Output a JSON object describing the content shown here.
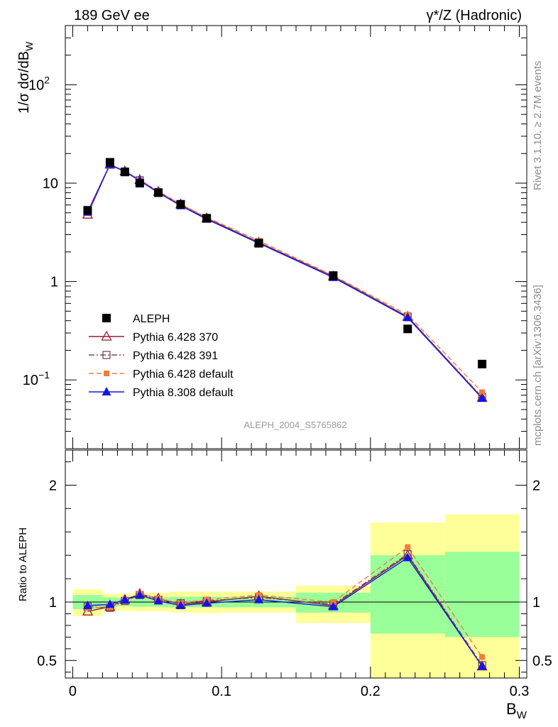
{
  "header": {
    "left_title": "189 GeV ee",
    "right_title": "γ*/Z (Hadronic)",
    "side_rivet": "Rivet 3.1.10, ≥ 2.7M events",
    "side_mcplots": "mcplots.cern.ch [arXiv:1306.3436]",
    "analysis_id": "ALEPH_2004_S5765862"
  },
  "chart_data": [
    {
      "type": "line",
      "panel": "main",
      "ylabel_main": "1/σ  dσ/dB",
      "ylabel_sub": "W",
      "yscale": "log",
      "ylim": [
        0.02,
        400
      ],
      "xlim": [
        -0.005,
        0.305
      ],
      "ytick_labels": [
        {
          "v": 100,
          "base": "10",
          "exp": "2"
        },
        {
          "v": 10,
          "base": "10",
          "exp": ""
        },
        {
          "v": 1,
          "base": "1",
          "exp": ""
        },
        {
          "v": 0.1,
          "base": "10",
          "exp": "−1"
        }
      ],
      "legend_position": "lower-left",
      "series": [
        {
          "name": "ALEPH",
          "color": "#000000",
          "marker": "square-filled",
          "x": [
            0.01,
            0.025,
            0.035,
            0.045,
            0.0575,
            0.0725,
            0.09,
            0.125,
            0.175,
            0.225,
            0.275
          ],
          "values": [
            5.3,
            16.3,
            13.0,
            10.0,
            8.0,
            6.1,
            4.4,
            2.45,
            1.15,
            0.33,
            0.145
          ]
        },
        {
          "name": "Pythia 6.428 370",
          "color": "#9b1b30",
          "marker": "triangle-open",
          "dash": "",
          "x": [
            0.01,
            0.025,
            0.035,
            0.045,
            0.0575,
            0.0725,
            0.09,
            0.125,
            0.175,
            0.225,
            0.275
          ],
          "values": [
            4.8,
            15.5,
            13.2,
            10.8,
            8.2,
            6.1,
            4.4,
            2.5,
            1.13,
            0.44,
            0.066
          ]
        },
        {
          "name": "Pythia 6.428 391",
          "color": "#7a4a5a",
          "marker": "square-open",
          "dash": "8 3 2 3",
          "x": [
            0.01,
            0.025,
            0.035,
            0.045,
            0.0575,
            0.0725,
            0.09,
            0.125,
            0.175,
            0.225,
            0.275
          ],
          "values": [
            5.1,
            15.4,
            13.1,
            10.7,
            8.1,
            6.0,
            4.4,
            2.5,
            1.12,
            0.44,
            0.067
          ]
        },
        {
          "name": "Pythia 6.428 default",
          "color": "#f07c3a",
          "marker": "square-filled-small",
          "dash": "7 4",
          "x": [
            0.01,
            0.025,
            0.035,
            0.045,
            0.0575,
            0.0725,
            0.09,
            0.125,
            0.175,
            0.225,
            0.275
          ],
          "values": [
            5.0,
            15.6,
            13.2,
            10.7,
            8.2,
            6.1,
            4.5,
            2.6,
            1.15,
            0.46,
            0.075
          ]
        },
        {
          "name": "Pythia 8.308 default",
          "color": "#1414e6",
          "marker": "triangle-filled",
          "dash": "",
          "x": [
            0.01,
            0.025,
            0.035,
            0.045,
            0.0575,
            0.0725,
            0.09,
            0.125,
            0.175,
            0.225,
            0.275
          ],
          "values": [
            5.1,
            15.5,
            13.1,
            10.6,
            8.0,
            5.9,
            4.3,
            2.45,
            1.1,
            0.43,
            0.065
          ]
        }
      ]
    },
    {
      "type": "line",
      "panel": "ratio",
      "ylabel": "Ratio to ALEPH",
      "xlabel_main": "B",
      "xlabel_sub": "W",
      "ylim": [
        0.35,
        2.3
      ],
      "xlim": [
        -0.005,
        0.305
      ],
      "xtick_labels": [
        {
          "v": 0,
          "label": "0"
        },
        {
          "v": 0.1,
          "label": "0.1"
        },
        {
          "v": 0.2,
          "label": "0.2"
        },
        {
          "v": 0.3,
          "label": "0.3"
        }
      ],
      "ytick_labels": [
        {
          "v": 2,
          "label": "2"
        },
        {
          "v": 1,
          "label": "1"
        },
        {
          "v": 0.5,
          "label": "0.5"
        }
      ],
      "bands": [
        {
          "x0": 0.0,
          "x1": 0.02,
          "yellow": [
            0.88,
            1.11
          ],
          "green": [
            0.94,
            1.06
          ]
        },
        {
          "x0": 0.02,
          "x1": 0.03,
          "yellow": [
            0.92,
            1.07
          ],
          "green": [
            0.96,
            1.04
          ]
        },
        {
          "x0": 0.03,
          "x1": 0.04,
          "yellow": [
            0.925,
            1.075
          ],
          "green": [
            0.965,
            1.035
          ]
        },
        {
          "x0": 0.04,
          "x1": 0.05,
          "yellow": [
            0.92,
            1.08
          ],
          "green": [
            0.96,
            1.04
          ]
        },
        {
          "x0": 0.05,
          "x1": 0.065,
          "yellow": [
            0.92,
            1.08
          ],
          "green": [
            0.96,
            1.04
          ]
        },
        {
          "x0": 0.065,
          "x1": 0.08,
          "yellow": [
            0.91,
            1.09
          ],
          "green": [
            0.955,
            1.045
          ]
        },
        {
          "x0": 0.08,
          "x1": 0.1,
          "yellow": [
            0.905,
            1.09
          ],
          "green": [
            0.955,
            1.045
          ]
        },
        {
          "x0": 0.1,
          "x1": 0.15,
          "yellow": [
            0.91,
            1.09
          ],
          "green": [
            0.955,
            1.045
          ]
        },
        {
          "x0": 0.15,
          "x1": 0.2,
          "yellow": [
            0.82,
            1.14
          ],
          "green": [
            0.91,
            1.08
          ]
        },
        {
          "x0": 0.2,
          "x1": 0.25,
          "yellow": [
            0.35,
            1.68
          ],
          "green": [
            0.73,
            1.4
          ]
        },
        {
          "x0": 0.25,
          "x1": 0.3,
          "yellow": [
            0.35,
            1.75
          ],
          "green": [
            0.7,
            1.43
          ]
        }
      ],
      "series": [
        {
          "name": "Pythia 6.428 370",
          "color": "#9b1b30",
          "marker": "triangle-open",
          "dash": "",
          "x": [
            0.01,
            0.025,
            0.035,
            0.045,
            0.0575,
            0.0725,
            0.09,
            0.125,
            0.175,
            0.225,
            0.275
          ],
          "values": [
            0.92,
            0.96,
            1.02,
            1.07,
            1.03,
            0.98,
            1.0,
            1.05,
            0.97,
            1.4,
            0.45
          ]
        },
        {
          "name": "Pythia 6.428 391",
          "color": "#7a4a5a",
          "marker": "square-open",
          "dash": "8 3 2 3",
          "x": [
            0.01,
            0.025,
            0.035,
            0.045,
            0.0575,
            0.0725,
            0.09,
            0.125,
            0.175,
            0.225,
            0.275
          ],
          "values": [
            0.96,
            0.95,
            1.01,
            1.06,
            1.02,
            0.99,
            1.01,
            1.04,
            0.98,
            1.41,
            0.46
          ]
        },
        {
          "name": "Pythia 6.428 default",
          "color": "#f07c3a",
          "marker": "square-filled-small",
          "dash": "7 4",
          "x": [
            0.01,
            0.025,
            0.035,
            0.045,
            0.0575,
            0.0725,
            0.09,
            0.125,
            0.175,
            0.225,
            0.275
          ],
          "values": [
            0.95,
            0.96,
            1.02,
            1.07,
            1.03,
            0.99,
            1.02,
            1.06,
            1.0,
            1.47,
            0.53
          ]
        },
        {
          "name": "Pythia 8.308 default",
          "color": "#1414e6",
          "marker": "triangle-filled",
          "dash": "",
          "x": [
            0.01,
            0.025,
            0.035,
            0.045,
            0.0575,
            0.0725,
            0.09,
            0.125,
            0.175,
            0.225,
            0.275
          ],
          "values": [
            0.97,
            0.98,
            1.02,
            1.06,
            1.01,
            0.97,
            0.99,
            1.02,
            0.96,
            1.38,
            0.45
          ]
        }
      ]
    }
  ]
}
